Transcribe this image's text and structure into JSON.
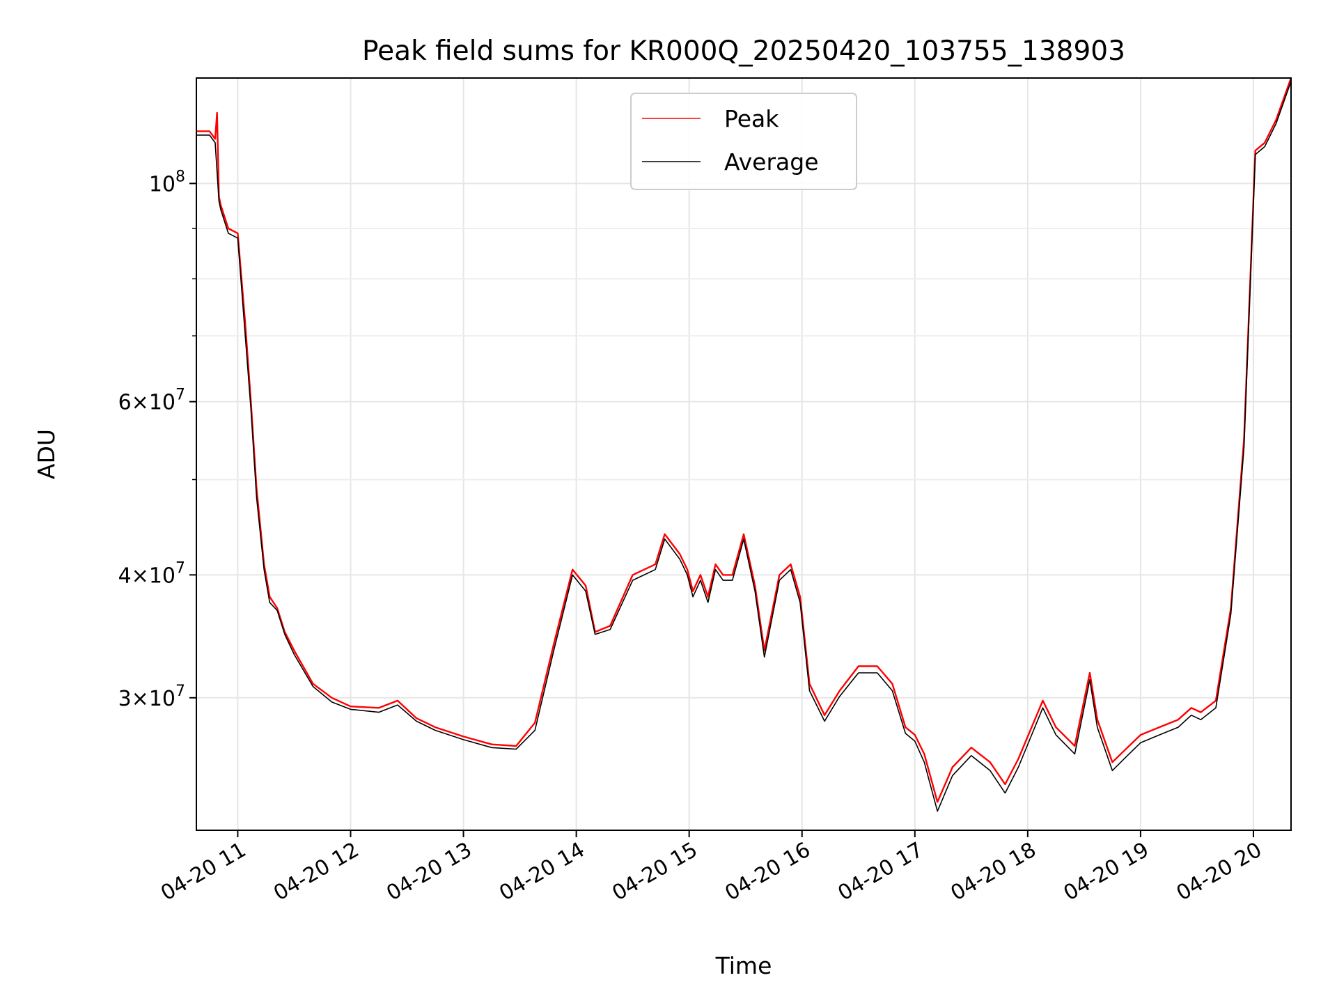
{
  "chart_data": {
    "type": "line",
    "title": "Peak field sums for KR000Q_20250420_103755_138903",
    "xlabel": "Time",
    "ylabel": "ADU",
    "yscale": "log",
    "ylim": [
      22000000,
      128000000
    ],
    "xlim": [
      "04-20 10:38",
      "04-20 20:20"
    ],
    "grid": true,
    "legend": {
      "placement": "top-center",
      "entries": [
        "Peak",
        "Average"
      ]
    },
    "x_ticks": [
      "04-20 11",
      "04-20 12",
      "04-20 13",
      "04-20 14",
      "04-20 15",
      "04-20 16",
      "04-20 17",
      "04-20 18",
      "04-20 19",
      "04-20 20"
    ],
    "y_tick_labels": [
      {
        "value": 100000000,
        "mantissa": "",
        "base": "10",
        "exp": "8"
      },
      {
        "value": 60000000,
        "mantissa": "6",
        "base": "10",
        "exp": "7"
      },
      {
        "value": 40000000,
        "mantissa": "4",
        "base": "10",
        "exp": "7"
      },
      {
        "value": 30000000,
        "mantissa": "3",
        "base": "10",
        "exp": "7"
      }
    ],
    "series": [
      {
        "name": "Peak",
        "color": "#ff0000",
        "x": [
          "04-20 10:38",
          "04-20 10:45",
          "04-20 10:48",
          "04-20 10:49",
          "04-20 10:50",
          "04-20 10:51",
          "04-20 10:55",
          "04-20 11:00",
          "04-20 11:04",
          "04-20 11:07",
          "04-20 11:10",
          "04-20 11:14",
          "04-20 11:17",
          "04-20 11:21",
          "04-20 11:25",
          "04-20 11:30",
          "04-20 11:40",
          "04-20 11:50",
          "04-20 12:00",
          "04-20 12:15",
          "04-20 12:25",
          "04-20 12:35",
          "04-20 12:45",
          "04-20 13:00",
          "04-20 13:15",
          "04-20 13:28",
          "04-20 13:38",
          "04-20 13:48",
          "04-20 13:58",
          "04-20 14:05",
          "04-20 14:10",
          "04-20 14:18",
          "04-20 14:30",
          "04-20 14:42",
          "04-20 14:47",
          "04-20 14:55",
          "04-20 14:59",
          "04-20 15:02",
          "04-20 15:06",
          "04-20 15:10",
          "04-20 15:14",
          "04-20 15:18",
          "04-20 15:23",
          "04-20 15:29",
          "04-20 15:35",
          "04-20 15:40",
          "04-20 15:48",
          "04-20 15:54",
          "04-20 15:59",
          "04-20 16:04",
          "04-20 16:12",
          "04-20 16:20",
          "04-20 16:30",
          "04-20 16:40",
          "04-20 16:48",
          "04-20 16:55",
          "04-20 17:00",
          "04-20 17:05",
          "04-20 17:12",
          "04-20 17:20",
          "04-20 17:30",
          "04-20 17:40",
          "04-20 17:48",
          "04-20 17:55",
          "04-20 18:08",
          "04-20 18:15",
          "04-20 18:25",
          "04-20 18:33",
          "04-20 18:37",
          "04-20 18:45",
          "04-20 18:53",
          "04-20 19:00",
          "04-20 19:10",
          "04-20 19:20",
          "04-20 19:27",
          "04-20 19:32",
          "04-20 19:40",
          "04-20 19:48",
          "04-20 19:55",
          "04-20 20:01",
          "04-20 20:06",
          "04-20 20:12",
          "04-20 20:20"
        ],
        "values": [
          113000000,
          113000000,
          111000000,
          118000000,
          97000000,
          95000000,
          90000000,
          89000000,
          72000000,
          60000000,
          49000000,
          41000000,
          38000000,
          37000000,
          35000000,
          33500000,
          31000000,
          30000000,
          29400000,
          29300000,
          29800000,
          28600000,
          28000000,
          27400000,
          26900000,
          26800000,
          28300000,
          34000000,
          40500000,
          39000000,
          35000000,
          35500000,
          40000000,
          41000000,
          44000000,
          42000000,
          40500000,
          38500000,
          40000000,
          38000000,
          41000000,
          40000000,
          40000000,
          44000000,
          39000000,
          33500000,
          40000000,
          41000000,
          38000000,
          31000000,
          28800000,
          30500000,
          32300000,
          32300000,
          31000000,
          28000000,
          27500000,
          26300000,
          23500000,
          25500000,
          26700000,
          25800000,
          24500000,
          26000000,
          29800000,
          28000000,
          26800000,
          31800000,
          28500000,
          25800000,
          26700000,
          27500000,
          28000000,
          28500000,
          29300000,
          29000000,
          29800000,
          37000000,
          55000000,
          108000000,
          110000000,
          116000000,
          128000000
        ]
      },
      {
        "name": "Average",
        "color": "#000000",
        "x": [
          "04-20 10:38",
          "04-20 10:45",
          "04-20 10:48",
          "04-20 10:50",
          "04-20 10:51",
          "04-20 10:55",
          "04-20 11:00",
          "04-20 11:04",
          "04-20 11:07",
          "04-20 11:10",
          "04-20 11:14",
          "04-20 11:17",
          "04-20 11:21",
          "04-20 11:25",
          "04-20 11:30",
          "04-20 11:40",
          "04-20 11:50",
          "04-20 12:00",
          "04-20 12:15",
          "04-20 12:25",
          "04-20 12:35",
          "04-20 12:45",
          "04-20 13:00",
          "04-20 13:15",
          "04-20 13:28",
          "04-20 13:38",
          "04-20 13:48",
          "04-20 13:58",
          "04-20 14:05",
          "04-20 14:10",
          "04-20 14:18",
          "04-20 14:30",
          "04-20 14:42",
          "04-20 14:47",
          "04-20 14:55",
          "04-20 14:59",
          "04-20 15:02",
          "04-20 15:06",
          "04-20 15:10",
          "04-20 15:14",
          "04-20 15:18",
          "04-20 15:23",
          "04-20 15:29",
          "04-20 15:35",
          "04-20 15:40",
          "04-20 15:48",
          "04-20 15:54",
          "04-20 15:59",
          "04-20 16:04",
          "04-20 16:12",
          "04-20 16:20",
          "04-20 16:30",
          "04-20 16:40",
          "04-20 16:48",
          "04-20 16:55",
          "04-20 17:00",
          "04-20 17:05",
          "04-20 17:12",
          "04-20 17:20",
          "04-20 17:30",
          "04-20 17:40",
          "04-20 17:48",
          "04-20 17:55",
          "04-20 18:08",
          "04-20 18:15",
          "04-20 18:25",
          "04-20 18:33",
          "04-20 18:37",
          "04-20 18:45",
          "04-20 18:53",
          "04-20 19:00",
          "04-20 19:10",
          "04-20 19:20",
          "04-20 19:27",
          "04-20 19:32",
          "04-20 19:40",
          "04-20 19:48",
          "04-20 19:55",
          "04-20 20:01",
          "04-20 20:06",
          "04-20 20:12",
          "04-20 20:20"
        ],
        "values": [
          112000000,
          112000000,
          110000000,
          96000000,
          94000000,
          89000000,
          88000000,
          70000000,
          59000000,
          48000000,
          40500000,
          37500000,
          36800000,
          34800000,
          33200000,
          30800000,
          29700000,
          29200000,
          29000000,
          29500000,
          28400000,
          27800000,
          27200000,
          26700000,
          26600000,
          27800000,
          33500000,
          40000000,
          38500000,
          34800000,
          35200000,
          39500000,
          40500000,
          43500000,
          41500000,
          40000000,
          38000000,
          39500000,
          37500000,
          40500000,
          39500000,
          39500000,
          43500000,
          38500000,
          33000000,
          39500000,
          40500000,
          37500000,
          30500000,
          28400000,
          30100000,
          31800000,
          31800000,
          30500000,
          27600000,
          27100000,
          25800000,
          23000000,
          25000000,
          26200000,
          25300000,
          24000000,
          25500000,
          29300000,
          27500000,
          26300000,
          31300000,
          28000000,
          25300000,
          26200000,
          27000000,
          27500000,
          28000000,
          28800000,
          28500000,
          29300000,
          36500000,
          54000000,
          107000000,
          109000000,
          115000000,
          127000000
        ]
      }
    ]
  }
}
